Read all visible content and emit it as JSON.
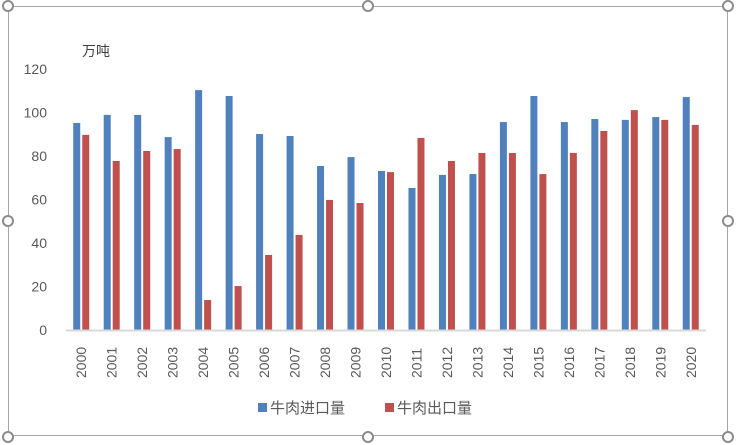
{
  "chart_data": {
    "type": "bar",
    "title": "",
    "ylabel": "万吨",
    "xlabel": "",
    "ylim": [
      0,
      120
    ],
    "yticks": [
      0,
      20,
      40,
      60,
      80,
      100,
      120
    ],
    "grid": false,
    "legend_position": "bottom",
    "categories": [
      "2000",
      "2001",
      "2002",
      "2003",
      "2004",
      "2005",
      "2006",
      "2007",
      "2008",
      "2009",
      "2010",
      "2011",
      "2012",
      "2013",
      "2014",
      "2015",
      "2016",
      "2017",
      "2018",
      "2019",
      "2020"
    ],
    "series": [
      {
        "name": "牛肉进口量",
        "color": "#4f81bd",
        "values": [
          95.2,
          98.9,
          98.9,
          88.7,
          110.3,
          107.6,
          90.1,
          89.2,
          75.4,
          79.5,
          73.1,
          65.3,
          71.3,
          71.7,
          95.6,
          107.6,
          95.6,
          97.0,
          96.6,
          97.9,
          107.1
        ]
      },
      {
        "name": "牛肉出口量",
        "color": "#c0504d",
        "values": [
          89.7,
          77.7,
          82.3,
          83.2,
          13.8,
          20.2,
          34.5,
          43.7,
          59.8,
          58.4,
          72.6,
          88.3,
          77.7,
          81.4,
          81.4,
          71.7,
          81.4,
          91.5,
          101.1,
          96.6,
          94.3
        ]
      }
    ]
  }
}
